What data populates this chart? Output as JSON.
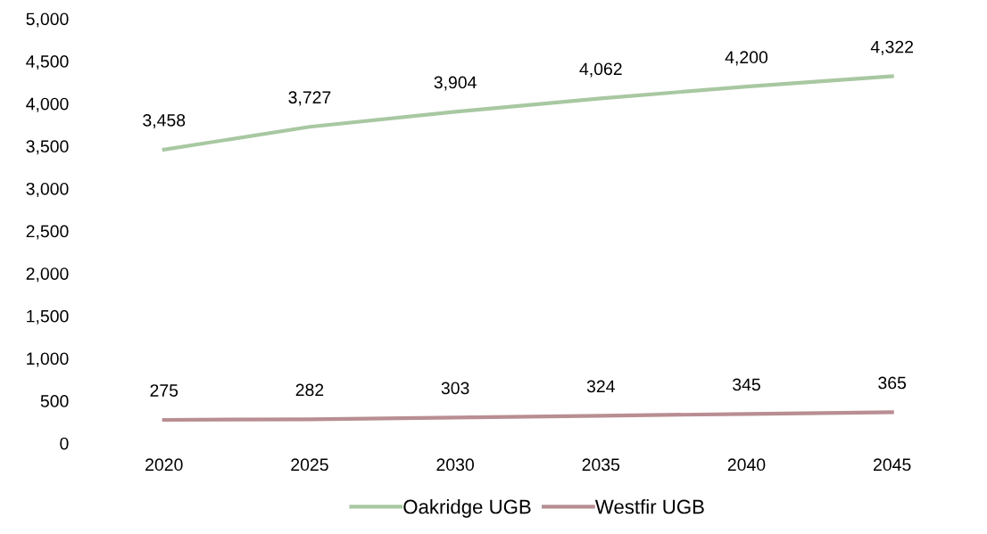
{
  "chart_data": {
    "type": "line",
    "categories": [
      "2020",
      "2025",
      "2030",
      "2035",
      "2040",
      "2045"
    ],
    "series": [
      {
        "name": "Oakridge UGB",
        "color": "#a8c8a2",
        "values": [
          3458,
          3727,
          3904,
          4062,
          4200,
          4322
        ],
        "value_labels": [
          "3,458",
          "3,727",
          "3,904",
          "4,062",
          "4,200",
          "4,322"
        ]
      },
      {
        "name": "Westfir UGB",
        "color": "#b98e92",
        "values": [
          275,
          282,
          303,
          324,
          345,
          365
        ],
        "value_labels": [
          "275",
          "282",
          "303",
          "324",
          "345",
          "365"
        ]
      }
    ],
    "ylim": [
      0,
      5000
    ],
    "yticks": [
      {
        "value": 0,
        "label": "0"
      },
      {
        "value": 500,
        "label": "500"
      },
      {
        "value": 1000,
        "label": "1,000"
      },
      {
        "value": 1500,
        "label": "1,500"
      },
      {
        "value": 2000,
        "label": "2,000"
      },
      {
        "value": 2500,
        "label": "2,500"
      },
      {
        "value": 3000,
        "label": "3,000"
      },
      {
        "value": 3500,
        "label": "3,500"
      },
      {
        "value": 4000,
        "label": "4,000"
      },
      {
        "value": 4500,
        "label": "4,500"
      },
      {
        "value": 5000,
        "label": "5,000"
      }
    ],
    "legend": "bottom",
    "marker": "none",
    "line_style": "solid"
  }
}
